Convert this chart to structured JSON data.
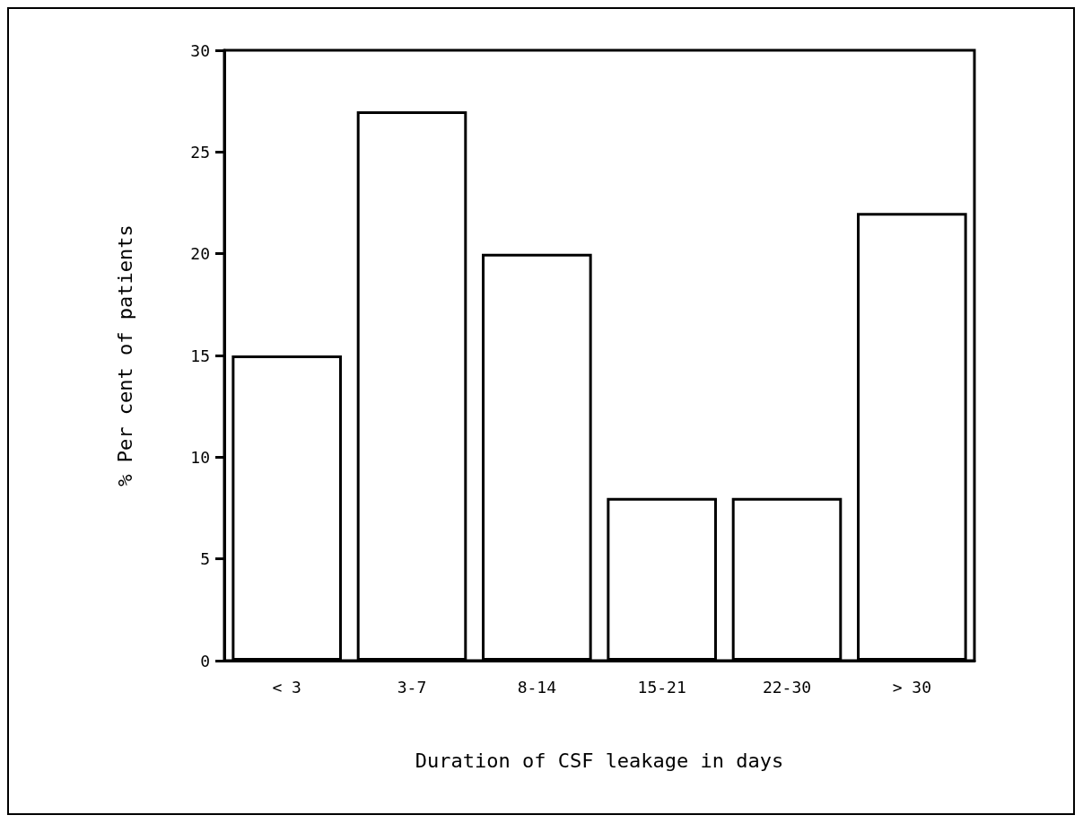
{
  "chart_data": {
    "type": "bar",
    "xlabel": "Duration of CSF leakage in days",
    "ylabel": "% Per cent of patients",
    "categories": [
      "< 3",
      "3-7",
      "8-14",
      "15-21",
      "22-30",
      "> 30"
    ],
    "values": [
      15,
      27,
      20,
      8,
      8,
      22
    ],
    "color": "#ffffff",
    "ylim": [
      0,
      30
    ],
    "yticks": [
      0,
      5,
      10,
      15,
      20,
      25,
      30
    ],
    "grid": false
  }
}
